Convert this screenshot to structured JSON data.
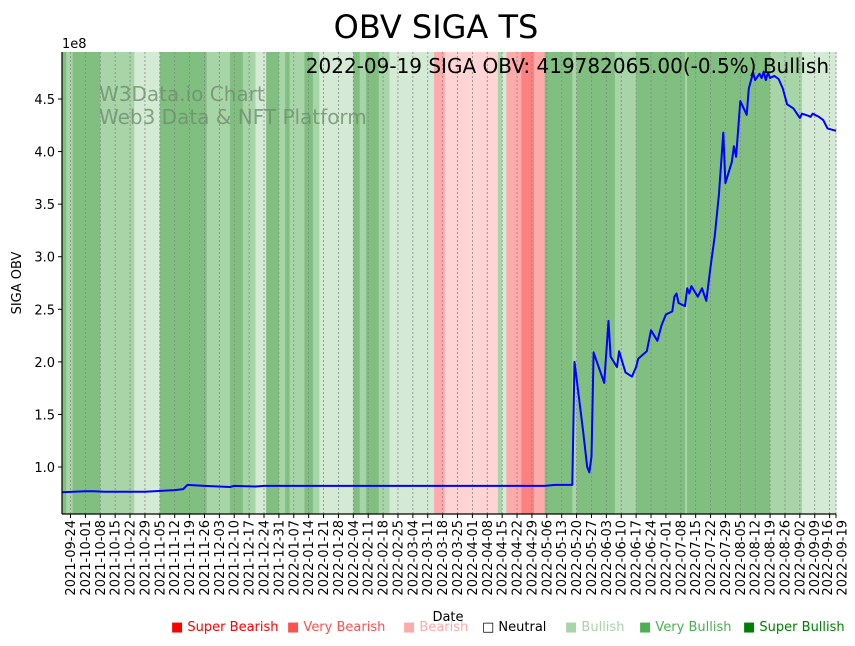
{
  "chart_data": {
    "type": "line",
    "title": "OBV SIGA TS",
    "annotation": "2022-09-19 SIGA OBV: 419782065.00(-0.5%) Bullish",
    "watermark": [
      "W3Data.io Chart",
      "Web3 Data & NFT Platform"
    ],
    "xlabel": "Date",
    "ylabel": "SIGA OBV",
    "y_offset_label": "1e8",
    "ylim": [
      0.553,
      4.947
    ],
    "xlim": [
      "2021-09-20",
      "2022-09-19"
    ],
    "yticks": [
      "1.0",
      "1.5",
      "2.0",
      "2.5",
      "3.0",
      "3.5",
      "4.0",
      "4.5"
    ],
    "xticks": [
      "2021-09-24",
      "2021-10-01",
      "2021-10-08",
      "2021-10-15",
      "2021-10-22",
      "2021-10-29",
      "2021-11-05",
      "2021-11-12",
      "2021-11-19",
      "2021-11-26",
      "2021-12-03",
      "2021-12-10",
      "2021-12-17",
      "2021-12-24",
      "2021-12-31",
      "2022-01-07",
      "2022-01-14",
      "2022-01-21",
      "2022-01-28",
      "2022-02-04",
      "2022-02-11",
      "2022-02-18",
      "2022-02-25",
      "2022-03-04",
      "2022-03-11",
      "2022-03-18",
      "2022-03-25",
      "2022-04-01",
      "2022-04-08",
      "2022-04-15",
      "2022-04-22",
      "2022-04-29",
      "2022-05-06",
      "2022-05-13",
      "2022-05-20",
      "2022-05-27",
      "2022-06-03",
      "2022-06-10",
      "2022-06-17",
      "2022-06-24",
      "2022-07-01",
      "2022-07-08",
      "2022-07-15",
      "2022-07-22",
      "2022-07-29",
      "2022-08-05",
      "2022-08-12",
      "2022-08-19",
      "2022-08-26",
      "2022-09-02",
      "2022-09-09",
      "2022-09-16",
      "2022-09-19"
    ],
    "series": [
      {
        "name": "SIGA OBV (1e8)",
        "color": "#0000ff",
        "points": [
          [
            "2021-09-20",
            0.76
          ],
          [
            "2021-10-01",
            0.77
          ],
          [
            "2021-10-05",
            0.77
          ],
          [
            "2021-10-10",
            0.765
          ],
          [
            "2021-10-29",
            0.765
          ],
          [
            "2021-11-12",
            0.78
          ],
          [
            "2021-11-16",
            0.79
          ],
          [
            "2021-11-18",
            0.83
          ],
          [
            "2021-11-26",
            0.82
          ],
          [
            "2021-12-08",
            0.81
          ],
          [
            "2021-12-10",
            0.82
          ],
          [
            "2021-12-20",
            0.815
          ],
          [
            "2021-12-24",
            0.82
          ],
          [
            "2022-01-15",
            0.82
          ],
          [
            "2022-02-20",
            0.82
          ],
          [
            "2022-03-20",
            0.82
          ],
          [
            "2022-04-08",
            0.82
          ],
          [
            "2022-05-05",
            0.82
          ],
          [
            "2022-05-10",
            0.83
          ],
          [
            "2022-05-18",
            0.83
          ],
          [
            "2022-05-19",
            2.0
          ],
          [
            "2022-05-23",
            1.35
          ],
          [
            "2022-05-25",
            1.0
          ],
          [
            "2022-05-26",
            0.95
          ],
          [
            "2022-05-27",
            1.1
          ],
          [
            "2022-05-28",
            2.09
          ],
          [
            "2022-06-02",
            1.8
          ],
          [
            "2022-06-04",
            2.39
          ],
          [
            "2022-06-05",
            2.05
          ],
          [
            "2022-06-08",
            1.95
          ],
          [
            "2022-06-09",
            2.1
          ],
          [
            "2022-06-12",
            1.9
          ],
          [
            "2022-06-15",
            1.86
          ],
          [
            "2022-06-17",
            1.95
          ],
          [
            "2022-06-18",
            2.03
          ],
          [
            "2022-06-22",
            2.1
          ],
          [
            "2022-06-24",
            2.3
          ],
          [
            "2022-06-27",
            2.2
          ],
          [
            "2022-06-29",
            2.35
          ],
          [
            "2022-07-01",
            2.45
          ],
          [
            "2022-07-04",
            2.48
          ],
          [
            "2022-07-05",
            2.62
          ],
          [
            "2022-07-06",
            2.65
          ],
          [
            "2022-07-07",
            2.56
          ],
          [
            "2022-07-10",
            2.53
          ],
          [
            "2022-07-11",
            2.7
          ],
          [
            "2022-07-12",
            2.65
          ],
          [
            "2022-07-13",
            2.72
          ],
          [
            "2022-07-16",
            2.62
          ],
          [
            "2022-07-18",
            2.7
          ],
          [
            "2022-07-20",
            2.58
          ],
          [
            "2022-07-22",
            2.9
          ],
          [
            "2022-07-24",
            3.2
          ],
          [
            "2022-07-26",
            3.6
          ],
          [
            "2022-07-28",
            4.18
          ],
          [
            "2022-07-29",
            3.7
          ],
          [
            "2022-08-01",
            3.9
          ],
          [
            "2022-08-02",
            4.05
          ],
          [
            "2022-08-03",
            3.95
          ],
          [
            "2022-08-05",
            4.48
          ],
          [
            "2022-08-08",
            4.35
          ],
          [
            "2022-08-09",
            4.6
          ],
          [
            "2022-08-11",
            4.75
          ],
          [
            "2022-08-12",
            4.68
          ],
          [
            "2022-08-14",
            4.74
          ],
          [
            "2022-08-15",
            4.7
          ],
          [
            "2022-08-16",
            4.76
          ],
          [
            "2022-08-17",
            4.68
          ],
          [
            "2022-08-18",
            4.75
          ],
          [
            "2022-08-19",
            4.7
          ],
          [
            "2022-08-21",
            4.72
          ],
          [
            "2022-08-23",
            4.69
          ],
          [
            "2022-08-25",
            4.6
          ],
          [
            "2022-08-27",
            4.45
          ],
          [
            "2022-08-30",
            4.41
          ],
          [
            "2022-09-01",
            4.35
          ],
          [
            "2022-09-02",
            4.32
          ],
          [
            "2022-09-03",
            4.36
          ],
          [
            "2022-09-06",
            4.34
          ],
          [
            "2022-09-07",
            4.33
          ],
          [
            "2022-09-08",
            4.36
          ],
          [
            "2022-09-11",
            4.33
          ],
          [
            "2022-09-13",
            4.3
          ],
          [
            "2022-09-15",
            4.22
          ],
          [
            "2022-09-19",
            4.198
          ]
        ]
      }
    ],
    "regime_bands": [
      [
        "2021-09-20",
        "2021-09-22",
        3
      ],
      [
        "2021-09-22",
        "2021-09-25",
        2
      ],
      [
        "2021-09-25",
        "2021-10-08",
        3
      ],
      [
        "2021-10-08",
        "2021-10-24",
        2
      ],
      [
        "2021-10-24",
        "2021-11-05",
        1
      ],
      [
        "2021-11-05",
        "2021-11-27",
        3
      ],
      [
        "2021-11-27",
        "2021-12-08",
        2
      ],
      [
        "2021-12-08",
        "2021-12-14",
        3
      ],
      [
        "2021-12-14",
        "2021-12-20",
        2
      ],
      [
        "2021-12-20",
        "2021-12-25",
        1
      ],
      [
        "2021-12-25",
        "2021-12-31",
        3
      ],
      [
        "2021-12-31",
        "2022-01-03",
        2
      ],
      [
        "2022-01-03",
        "2022-01-05",
        3
      ],
      [
        "2022-01-05",
        "2022-01-12",
        2
      ],
      [
        "2022-01-12",
        "2022-01-16",
        3
      ],
      [
        "2022-01-16",
        "2022-01-19",
        2
      ],
      [
        "2022-01-19",
        "2022-02-04",
        1
      ],
      [
        "2022-02-04",
        "2022-02-07",
        3
      ],
      [
        "2022-02-07",
        "2022-02-10",
        2
      ],
      [
        "2022-02-10",
        "2022-02-16",
        3
      ],
      [
        "2022-02-16",
        "2022-02-21",
        2
      ],
      [
        "2022-02-21",
        "2022-03-14",
        1
      ],
      [
        "2022-03-14",
        "2022-03-19",
        -2
      ],
      [
        "2022-03-19",
        "2022-04-13",
        -1
      ],
      [
        "2022-04-13",
        "2022-04-15",
        2
      ],
      [
        "2022-04-15",
        "2022-04-17",
        1
      ],
      [
        "2022-04-17",
        "2022-04-24",
        -2
      ],
      [
        "2022-04-24",
        "2022-04-30",
        -3
      ],
      [
        "2022-04-30",
        "2022-05-05",
        -2
      ],
      [
        "2022-05-05",
        "2022-05-18",
        3
      ],
      [
        "2022-05-18",
        "2022-05-20",
        2
      ],
      [
        "2022-05-20",
        "2022-06-07",
        3
      ],
      [
        "2022-06-07",
        "2022-06-17",
        2
      ],
      [
        "2022-06-17",
        "2022-07-10",
        3
      ],
      [
        "2022-07-10",
        "2022-07-11",
        2
      ],
      [
        "2022-07-11",
        "2022-08-19",
        3
      ],
      [
        "2022-08-19",
        "2022-08-23",
        2
      ],
      [
        "2022-08-23",
        "2022-09-03",
        2
      ],
      [
        "2022-09-03",
        "2022-09-19",
        1
      ]
    ],
    "band_colors": {
      "3": "#80bf80",
      "2": "#a8d5a8",
      "1": "#d4ead4",
      "-1": "#ffd4d4",
      "-2": "#ffaaaa",
      "-3": "#ff8080"
    },
    "legend": [
      {
        "label": "Super Bearish",
        "symbol": "■",
        "color": "#ff0000"
      },
      {
        "label": "Very Bearish",
        "symbol": "■",
        "color": "#ff5050"
      },
      {
        "label": "Bearish",
        "symbol": "■",
        "color": "#ffaaaa"
      },
      {
        "label": "Neutral",
        "symbol": "□",
        "color": "#000000"
      },
      {
        "label": "Bullish",
        "symbol": "■",
        "color": "#a8d5a8"
      },
      {
        "label": "Very Bullish",
        "symbol": "■",
        "color": "#4caf50"
      },
      {
        "label": "Super Bullish",
        "symbol": "■",
        "color": "#008000"
      }
    ],
    "legend_placement": "bottom"
  }
}
